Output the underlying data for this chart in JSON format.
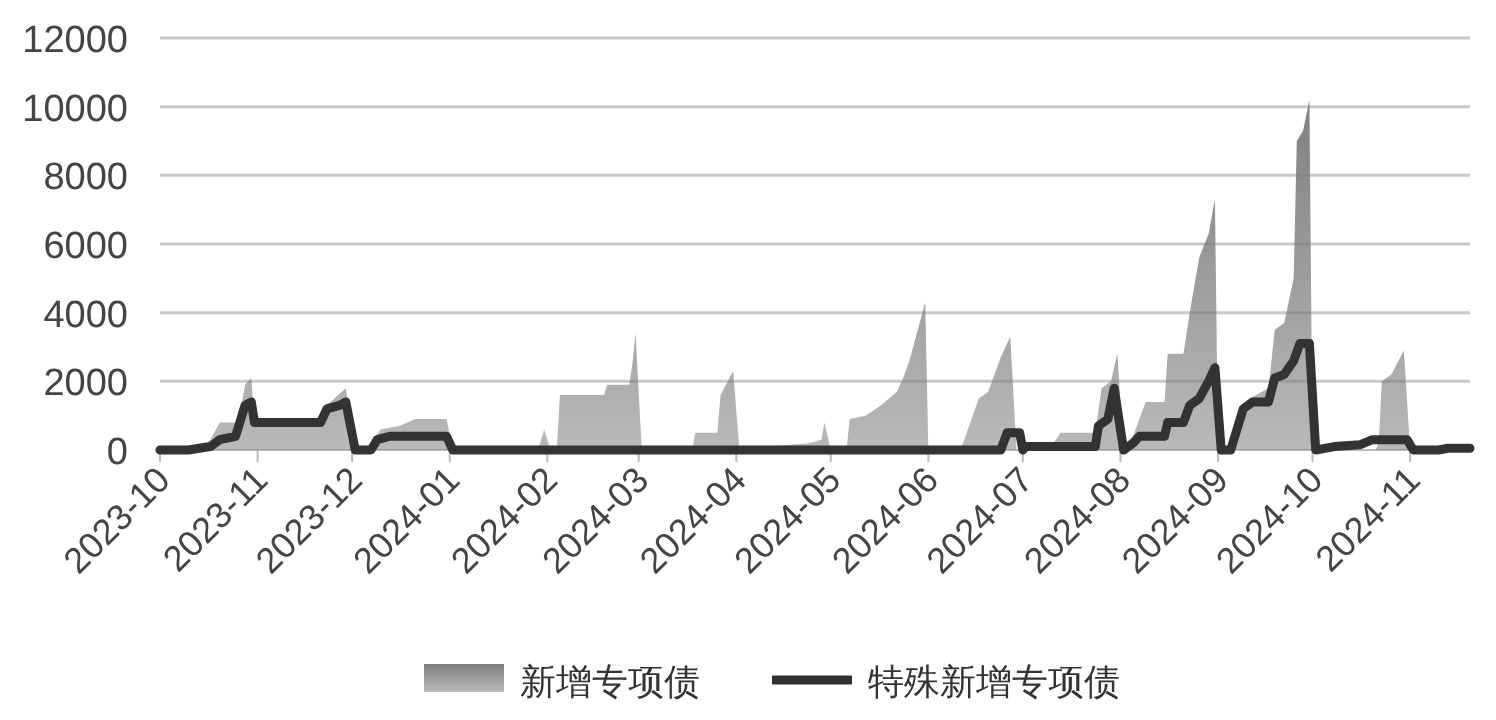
{
  "chart_data": {
    "type": "area",
    "xlim": [
      "2023-10-01",
      "2024-11-20"
    ],
    "xticks": [
      "2023-10",
      "2023-11",
      "2023-12",
      "2024-01",
      "2024-02",
      "2024-03",
      "2024-04",
      "2024-05",
      "2024-06",
      "2024-07",
      "2024-08",
      "2024-09",
      "2024-10",
      "2024-11"
    ],
    "ylim": [
      0,
      12000
    ],
    "yticks": [
      0,
      2000,
      4000,
      6000,
      8000,
      10000,
      12000
    ],
    "grid": "y",
    "legend": "bottom",
    "series": [
      {
        "name": "新增专项债",
        "color": "#808080",
        "x": [
          "2023-10-01",
          "2023-10-14",
          "2023-10-17",
          "2023-10-20",
          "2023-10-26",
          "2023-10-28",
          "2023-10-30",
          "2023-10-31",
          "2023-11-21",
          "2023-11-23",
          "2023-11-29",
          "2023-12-02",
          "2023-12-07",
          "2023-12-08",
          "2023-12-10",
          "2023-12-16",
          "2023-12-21",
          "2023-12-31",
          "2024-01-02",
          "2024-01-29",
          "2024-01-31",
          "2024-02-02",
          "2024-02-04",
          "2024-02-05",
          "2024-02-19",
          "2024-02-20",
          "2024-02-27",
          "2024-02-28",
          "2024-02-29",
          "2024-03-02",
          "2024-03-18",
          "2024-03-19",
          "2024-03-26",
          "2024-03-27",
          "2024-03-31",
          "2024-04-02",
          "2024-04-10",
          "2024-04-11",
          "2024-04-24",
          "2024-04-28",
          "2024-04-29",
          "2024-05-01",
          "2024-05-06",
          "2024-05-07",
          "2024-05-12",
          "2024-05-17",
          "2024-05-22",
          "2024-05-24",
          "2024-05-26",
          "2024-05-31",
          "2024-06-01",
          "2024-06-11",
          "2024-06-12",
          "2024-06-17",
          "2024-06-20",
          "2024-06-24",
          "2024-06-27",
          "2024-06-29",
          "2024-07-01",
          "2024-07-10",
          "2024-07-13",
          "2024-07-24",
          "2024-07-26",
          "2024-07-29",
          "2024-07-31",
          "2024-08-02",
          "2024-08-04",
          "2024-08-05",
          "2024-08-09",
          "2024-08-15",
          "2024-08-16",
          "2024-08-21",
          "2024-08-23",
          "2024-08-26",
          "2024-08-29",
          "2024-08-31",
          "2024-09-01",
          "2024-09-05",
          "2024-09-06",
          "2024-09-11",
          "2024-09-17",
          "2024-09-19",
          "2024-09-22",
          "2024-09-25",
          "2024-09-26",
          "2024-09-28",
          "2024-09-30",
          "2024-10-01",
          "2024-10-21",
          "2024-10-22",
          "2024-10-23",
          "2024-10-26",
          "2024-10-30",
          "2024-11-01",
          "2024-11-20"
        ],
        "values": [
          0,
          0,
          300,
          800,
          800,
          1900,
          2100,
          800,
          800,
          1300,
          1800,
          0,
          0,
          300,
          600,
          700,
          900,
          900,
          0,
          0,
          600,
          0,
          0,
          1600,
          1600,
          1900,
          1900,
          2500,
          3400,
          0,
          0,
          500,
          500,
          1600,
          2300,
          0,
          0,
          100,
          200,
          300,
          800,
          0,
          0,
          900,
          1000,
          1300,
          1700,
          2100,
          2600,
          4300,
          0,
          0,
          200,
          1500,
          1700,
          2700,
          3300,
          0,
          100,
          100,
          500,
          500,
          1800,
          2000,
          2800,
          0,
          0,
          400,
          1400,
          1400,
          2800,
          2800,
          4000,
          5600,
          6300,
          7300,
          0,
          0,
          200,
          1500,
          1800,
          3500,
          3700,
          5000,
          9000,
          9300,
          10200,
          0,
          0,
          200,
          2000,
          2200,
          2900,
          0,
          0
        ]
      },
      {
        "name": "特殊新增专项债",
        "type": "line",
        "color": "#333333",
        "x": [
          "2023-10-01",
          "2023-10-10",
          "2023-10-17",
          "2023-10-20",
          "2023-10-25",
          "2023-10-28",
          "2023-10-30",
          "2023-10-31",
          "2023-11-21",
          "2023-11-23",
          "2023-11-27",
          "2023-11-29",
          "2023-12-02",
          "2023-12-07",
          "2023-12-09",
          "2023-12-13",
          "2023-12-31",
          "2024-01-02",
          "2024-06-24",
          "2024-06-26",
          "2024-06-30",
          "2024-07-01",
          "2024-07-02",
          "2024-07-24",
          "2024-07-25",
          "2024-07-28",
          "2024-07-30",
          "2024-08-02",
          "2024-08-05",
          "2024-08-07",
          "2024-08-15",
          "2024-08-16",
          "2024-08-21",
          "2024-08-23",
          "2024-08-26",
          "2024-08-29",
          "2024-08-31",
          "2024-09-02",
          "2024-09-05",
          "2024-09-09",
          "2024-09-12",
          "2024-09-17",
          "2024-09-19",
          "2024-09-22",
          "2024-09-25",
          "2024-09-27",
          "2024-09-30",
          "2024-10-02",
          "2024-10-08",
          "2024-10-16",
          "2024-10-20",
          "2024-10-31",
          "2024-11-02",
          "2024-11-10",
          "2024-11-13",
          "2024-11-20"
        ],
        "values": [
          0,
          0,
          100,
          300,
          400,
          1300,
          1400,
          800,
          800,
          1200,
          1300,
          1400,
          0,
          0,
          300,
          400,
          400,
          0,
          0,
          500,
          500,
          0,
          100,
          100,
          700,
          900,
          1800,
          0,
          200,
          400,
          400,
          800,
          800,
          1300,
          1500,
          2000,
          2400,
          0,
          0,
          1200,
          1400,
          1400,
          2100,
          2200,
          2600,
          3100,
          3100,
          0,
          100,
          150,
          300,
          300,
          0,
          0,
          50,
          50
        ]
      }
    ]
  }
}
